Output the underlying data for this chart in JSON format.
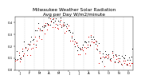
{
  "title": "Milwaukee Weather Solar Radiation",
  "subtitle": "Avg per Day W/m2/minute",
  "ylim": [
    0.0,
    0.45
  ],
  "xlim": [
    1,
    365
  ],
  "background_color": "#ffffff",
  "grid_color": "#bbbbbb",
  "dot_color_main": "#dd0000",
  "dot_color_secondary": "#000000",
  "title_fontsize": 4.2,
  "tick_fontsize": 2.8,
  "x_ticks": [
    15,
    46,
    75,
    106,
    136,
    167,
    197,
    228,
    259,
    289,
    320,
    350
  ],
  "x_labels": [
    "J",
    "F",
    "M",
    "A",
    "M",
    "J",
    "J",
    "A",
    "S",
    "O",
    "N",
    "D"
  ],
  "vlines": [
    32,
    60,
    91,
    121,
    152,
    182,
    213,
    244,
    274,
    305,
    335
  ],
  "data_x": [
    3,
    6,
    9,
    13,
    17,
    20,
    24,
    27,
    30,
    35,
    38,
    42,
    45,
    48,
    52,
    55,
    59,
    62,
    65,
    68,
    72,
    75,
    78,
    82,
    85,
    89,
    92,
    96,
    99,
    103,
    106,
    110,
    113,
    117,
    120,
    124,
    127,
    131,
    134,
    138,
    141,
    145,
    148,
    152,
    155,
    158,
    162,
    165,
    169,
    172,
    176,
    179,
    183,
    186,
    190,
    193,
    196,
    200,
    203,
    207,
    210,
    214,
    217,
    221,
    224,
    228,
    231,
    235,
    238,
    242,
    245,
    249,
    252,
    255,
    259,
    262,
    265,
    269,
    272,
    276,
    279,
    282,
    286,
    289,
    293,
    296,
    300,
    303,
    307,
    310,
    314,
    317,
    321,
    324,
    328,
    331,
    334,
    338,
    341,
    345,
    348,
    352,
    355,
    359,
    362
  ],
  "data_y_red": [
    0.06,
    0.09,
    0.07,
    0.1,
    0.08,
    0.11,
    0.13,
    0.1,
    0.15,
    0.17,
    0.14,
    0.19,
    0.21,
    0.18,
    0.23,
    0.2,
    0.25,
    0.27,
    0.22,
    0.29,
    0.31,
    0.28,
    0.33,
    0.3,
    0.35,
    0.37,
    0.34,
    0.38,
    0.36,
    0.39,
    0.4,
    0.38,
    0.41,
    0.39,
    0.41,
    0.4,
    0.38,
    0.41,
    0.39,
    0.38,
    0.4,
    0.37,
    0.39,
    0.38,
    0.36,
    0.35,
    0.37,
    0.34,
    0.32,
    0.3,
    0.28,
    0.26,
    0.24,
    0.22,
    0.2,
    0.18,
    0.16,
    0.14,
    0.17,
    0.15,
    0.18,
    0.2,
    0.17,
    0.22,
    0.19,
    0.24,
    0.21,
    0.26,
    0.23,
    0.25,
    0.22,
    0.2,
    0.18,
    0.16,
    0.14,
    0.12,
    0.1,
    0.08,
    0.11,
    0.09,
    0.12,
    0.1,
    0.08,
    0.13,
    0.11,
    0.09,
    0.12,
    0.1,
    0.08,
    0.11,
    0.09,
    0.07,
    0.1,
    0.08,
    0.06,
    0.09,
    0.07,
    0.05,
    0.08,
    0.06,
    0.09,
    0.07,
    0.05,
    0.08,
    0.06
  ],
  "data_y_black": [
    0.08,
    0.11,
    0.09,
    0.12,
    0.1,
    0.14,
    0.16,
    0.12,
    0.18,
    0.2,
    0.16,
    0.22,
    0.24,
    0.21,
    0.26,
    0.23,
    0.28,
    0.3,
    0.25,
    0.32,
    0.34,
    0.31,
    0.36,
    0.33,
    0.38,
    0.4,
    0.37,
    0.4,
    0.38,
    0.41,
    0.42,
    0.4,
    0.42,
    0.41,
    0.43,
    0.41,
    0.4,
    0.42,
    0.41,
    0.4,
    0.42,
    0.39,
    0.41,
    0.39,
    0.37,
    0.36,
    0.38,
    0.35,
    0.33,
    0.31,
    0.29,
    0.27,
    0.25,
    0.23,
    0.21,
    0.19,
    0.17,
    0.16,
    0.19,
    0.17,
    0.2,
    0.22,
    0.19,
    0.24,
    0.21,
    0.26,
    0.23,
    0.28,
    0.25,
    0.27,
    0.24,
    0.22,
    0.2,
    0.18,
    0.16,
    0.14,
    0.12,
    0.1,
    0.13,
    0.11,
    0.14,
    0.12,
    0.1,
    0.15,
    0.13,
    0.11,
    0.14,
    0.12,
    0.1,
    0.13,
    0.11,
    0.09,
    0.12,
    0.1,
    0.08,
    0.11,
    0.09,
    0.07,
    0.1,
    0.08,
    0.11,
    0.09,
    0.07,
    0.1,
    0.08
  ]
}
